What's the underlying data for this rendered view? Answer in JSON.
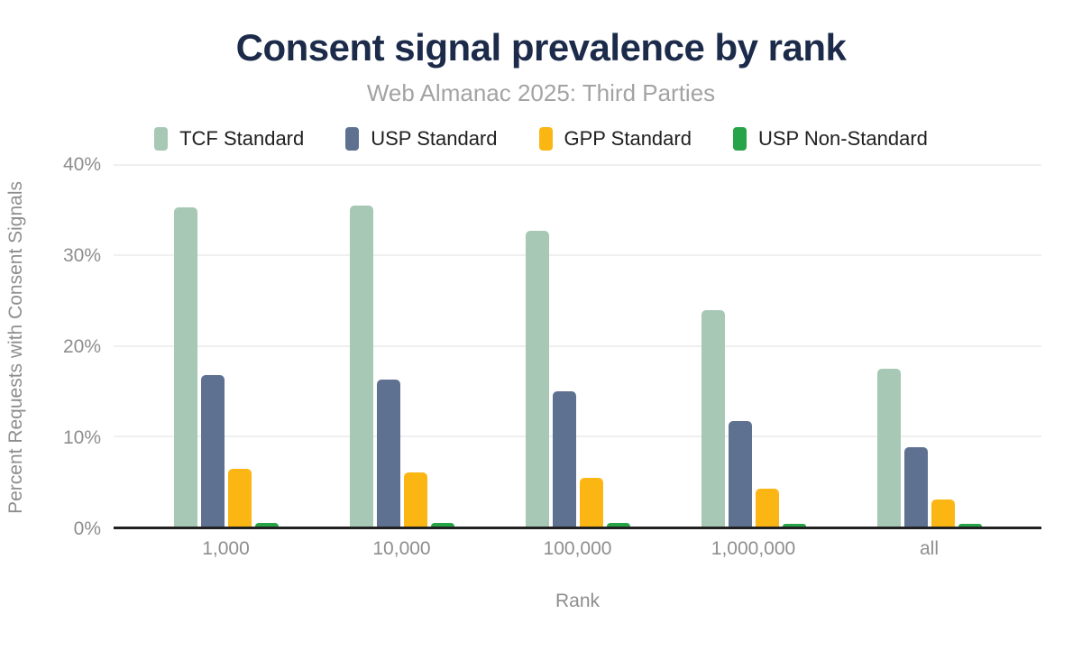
{
  "chart_data": {
    "type": "bar",
    "title": "Consent signal prevalence by rank",
    "subtitle": "Web Almanac 2025: Third Parties",
    "xlabel": "Rank",
    "ylabel": "Percent Requests with Consent Signals",
    "categories": [
      "1,000",
      "10,000",
      "100,000",
      "1,000,000",
      "all"
    ],
    "series": [
      {
        "name": "TCF Standard",
        "color": "#a6c8b4",
        "values": [
          35.3,
          35.5,
          32.7,
          24.0,
          17.5
        ]
      },
      {
        "name": "USP Standard",
        "color": "#5f7191",
        "values": [
          16.8,
          16.3,
          15.0,
          11.7,
          8.8
        ]
      },
      {
        "name": "GPP Standard",
        "color": "#fcb614",
        "values": [
          6.4,
          6.0,
          5.4,
          4.2,
          3.0
        ]
      },
      {
        "name": "USP Non-Standard",
        "color": "#27a348",
        "values": [
          0.4,
          0.4,
          0.4,
          0.3,
          0.3
        ]
      }
    ],
    "ylim": [
      0,
      40
    ],
    "yticks": [
      0,
      10,
      20,
      30,
      40
    ],
    "ytick_suffix": "%",
    "legend_position": "top",
    "grid": true
  },
  "colors": {
    "title": "#1c2b4a",
    "subtitle": "#a3a3a3",
    "axis_text": "#8e8e8e",
    "legend_text": "#212121",
    "gridline": "#efefef",
    "axis_line": "#212121",
    "background": "#ffffff"
  }
}
